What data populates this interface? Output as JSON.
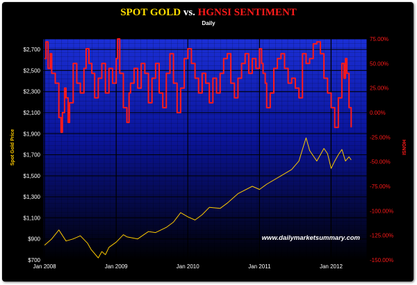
{
  "chart_data": {
    "type": "line",
    "title": {
      "part1": "SPOT GOLD",
      "part2": " vs. ",
      "part3": "HGNSI SENTIMENT"
    },
    "subtitle": "Daily",
    "watermark": "www.dailymarketsummary.com",
    "x_tick_labels": [
      "Jan 2008",
      "Jan 2009",
      "Jan 2010",
      "Jan 2011",
      "Jan 2012"
    ],
    "x_range": [
      2007.98,
      2012.5
    ],
    "left_axis": {
      "label": "Spot Gold Price",
      "range": [
        700,
        2800
      ],
      "ticks": [
        700,
        900,
        1100,
        1300,
        1500,
        1700,
        1900,
        2100,
        2300,
        2500,
        2700
      ],
      "tick_labels": [
        "$700",
        "$900",
        "$1,100",
        "$1,300",
        "$1,500",
        "$1,700",
        "$1,900",
        "$2,100",
        "$2,300",
        "$2,500",
        "$2,700"
      ]
    },
    "right_axis": {
      "label": "HGNSI",
      "range": [
        -150,
        75
      ],
      "ticks": [
        75,
        50,
        25,
        0,
        -25,
        -50,
        -75,
        -100,
        -125,
        -150
      ],
      "tick_labels": [
        "75.00%",
        "50.00%",
        "25.00%",
        "0.00%",
        "-25.00%",
        "-50.00%",
        "-75.00%",
        "-100.00%",
        "-125.00%",
        "-150.00%"
      ]
    },
    "series": [
      {
        "name": "Spot Gold",
        "axis": "left",
        "color": "#ffcc00",
        "x": [
          2008.0,
          2008.1,
          2008.2,
          2008.3,
          2008.4,
          2008.5,
          2008.6,
          2008.65,
          2008.75,
          2008.8,
          2008.85,
          2008.9,
          2009.0,
          2009.1,
          2009.15,
          2009.3,
          2009.45,
          2009.55,
          2009.7,
          2009.8,
          2009.9,
          2010.0,
          2010.1,
          2010.2,
          2010.3,
          2010.45,
          2010.55,
          2010.7,
          2010.9,
          2011.0,
          2011.1,
          2011.3,
          2011.45,
          2011.5,
          2011.55,
          2011.6,
          2011.65,
          2011.7,
          2011.8,
          2011.85,
          2011.9,
          2011.95,
          2012.0,
          2012.05,
          2012.1,
          2012.15,
          2012.2,
          2012.25,
          2012.28
        ],
        "values": [
          840,
          900,
          985,
          880,
          900,
          930,
          860,
          800,
          720,
          780,
          750,
          820,
          870,
          940,
          920,
          900,
          970,
          960,
          1010,
          1060,
          1150,
          1110,
          1080,
          1130,
          1200,
          1190,
          1240,
          1330,
          1400,
          1370,
          1420,
          1500,
          1560,
          1600,
          1640,
          1750,
          1860,
          1740,
          1640,
          1700,
          1760,
          1710,
          1570,
          1640,
          1700,
          1750,
          1640,
          1680,
          1650
        ]
      },
      {
        "name": "HGNSI",
        "axis": "right",
        "color": "#ff1a1a",
        "x": [
          2008.0,
          2008.02,
          2008.05,
          2008.08,
          2008.1,
          2008.15,
          2008.2,
          2008.23,
          2008.25,
          2008.28,
          2008.3,
          2008.33,
          2008.35,
          2008.4,
          2008.45,
          2008.5,
          2008.55,
          2008.58,
          2008.62,
          2008.66,
          2008.7,
          2008.75,
          2008.8,
          2008.85,
          2008.9,
          2008.95,
          2009.0,
          2009.02,
          2009.05,
          2009.1,
          2009.15,
          2009.18,
          2009.2,
          2009.25,
          2009.3,
          2009.35,
          2009.4,
          2009.45,
          2009.5,
          2009.55,
          2009.6,
          2009.65,
          2009.7,
          2009.75,
          2009.8,
          2009.85,
          2009.9,
          2009.95,
          2010.0,
          2010.05,
          2010.1,
          2010.15,
          2010.2,
          2010.25,
          2010.3,
          2010.35,
          2010.4,
          2010.45,
          2010.5,
          2010.55,
          2010.6,
          2010.65,
          2010.7,
          2010.75,
          2010.8,
          2010.85,
          2010.9,
          2010.95,
          2011.0,
          2011.03,
          2011.05,
          2011.08,
          2011.1,
          2011.15,
          2011.2,
          2011.25,
          2011.3,
          2011.35,
          2011.4,
          2011.45,
          2011.5,
          2011.55,
          2011.6,
          2011.65,
          2011.7,
          2011.75,
          2011.8,
          2011.85,
          2011.9,
          2011.95,
          2012.0,
          2012.05,
          2012.1,
          2012.15,
          2012.18,
          2012.2,
          2012.22,
          2012.25,
          2012.28
        ],
        "values": [
          55,
          72,
          45,
          60,
          40,
          30,
          -5,
          -20,
          0,
          25,
          15,
          -10,
          10,
          50,
          30,
          20,
          45,
          65,
          50,
          40,
          15,
          35,
          50,
          20,
          45,
          30,
          55,
          75,
          40,
          5,
          -10,
          20,
          30,
          45,
          25,
          50,
          40,
          10,
          35,
          50,
          20,
          5,
          40,
          60,
          30,
          0,
          25,
          55,
          65,
          50,
          35,
          20,
          40,
          30,
          10,
          35,
          20,
          40,
          55,
          60,
          30,
          15,
          35,
          50,
          60,
          40,
          55,
          45,
          65,
          50,
          40,
          30,
          5,
          20,
          45,
          55,
          60,
          45,
          30,
          35,
          25,
          15,
          60,
          50,
          55,
          70,
          72,
          60,
          35,
          20,
          5,
          -15,
          15,
          50,
          35,
          55,
          40,
          5,
          -15
        ]
      }
    ]
  }
}
